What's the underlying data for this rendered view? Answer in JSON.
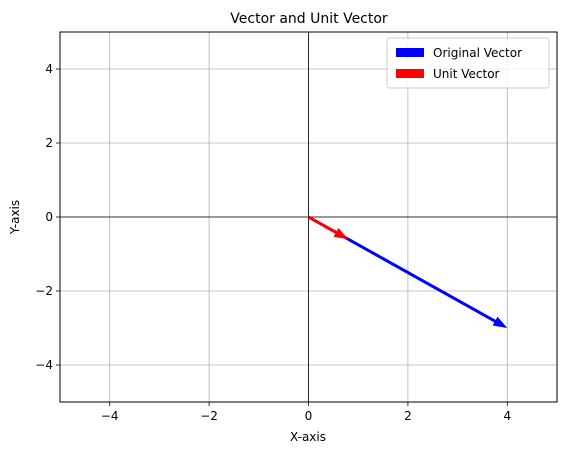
{
  "chart_data": {
    "type": "vector",
    "title": "Vector and Unit Vector",
    "xlabel": "X-axis",
    "ylabel": "Y-axis",
    "xlim": [
      -5,
      5
    ],
    "ylim": [
      -5,
      5
    ],
    "x_ticks": [
      -4,
      -2,
      0,
      2,
      4
    ],
    "y_ticks": [
      -4,
      -2,
      0,
      2,
      4
    ],
    "x_tick_labels": [
      "−4",
      "−2",
      "0",
      "2",
      "4"
    ],
    "y_tick_labels": [
      "−4",
      "−2",
      "0",
      "2",
      "4"
    ],
    "grid": true,
    "reference_lines": {
      "x": 0,
      "y": 0
    },
    "legend": "top-right",
    "vectors": [
      {
        "name": "Original Vector",
        "start": [
          0,
          0
        ],
        "end": [
          4,
          -3
        ],
        "color": "#0000ff"
      },
      {
        "name": "Unit Vector",
        "start": [
          0,
          0
        ],
        "end": [
          0.8,
          -0.6
        ],
        "color": "#ff0000"
      }
    ]
  }
}
